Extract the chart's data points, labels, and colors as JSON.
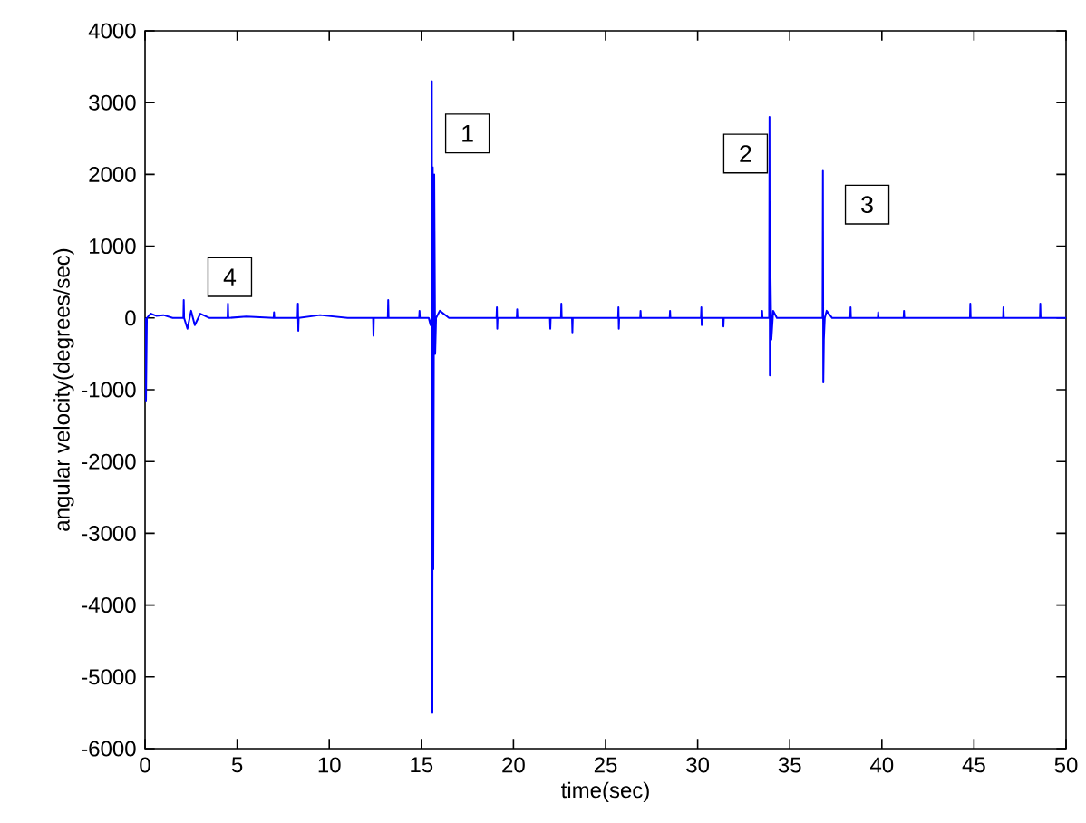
{
  "chart_data": {
    "type": "line",
    "xlabel": "time(sec)",
    "ylabel": "angular velocity(degrees/sec)",
    "xlim": [
      0,
      50
    ],
    "ylim": [
      -6000,
      4000
    ],
    "xticks": [
      0,
      5,
      10,
      15,
      20,
      25,
      30,
      35,
      40,
      45,
      50
    ],
    "yticks": [
      -6000,
      -5000,
      -4000,
      -3000,
      -2000,
      -1000,
      0,
      1000,
      2000,
      3000,
      4000
    ],
    "grid": false,
    "marker": "none",
    "line_style": "solid",
    "series": [
      {
        "color": "#0000ff",
        "x": [
          0,
          0.05,
          0.1,
          0.3,
          0.6,
          1.0,
          1.5,
          2.08,
          2.1,
          2.12,
          2.3,
          2.5,
          2.7,
          3.0,
          3.5,
          4.48,
          4.5,
          4.52,
          5.5,
          6.98,
          7.0,
          7.02,
          8.28,
          8.3,
          8.32,
          8.34,
          9.5,
          11.0,
          12.38,
          12.4,
          12.42,
          13.18,
          13.2,
          13.22,
          14.88,
          14.9,
          14.92,
          15.4,
          15.5,
          15.55,
          15.57,
          15.6,
          15.62,
          15.65,
          15.7,
          15.75,
          15.8,
          16.0,
          16.5,
          17.5,
          19.08,
          19.1,
          19.12,
          19.14,
          20.18,
          20.2,
          20.22,
          21.98,
          22.0,
          22.02,
          22.58,
          22.6,
          22.62,
          23.18,
          23.2,
          23.22,
          24.5,
          25.68,
          25.7,
          25.72,
          25.74,
          26.88,
          26.9,
          26.92,
          28.48,
          28.5,
          28.52,
          30.18,
          30.2,
          30.22,
          30.24,
          31.38,
          31.4,
          31.42,
          33.48,
          33.5,
          33.52,
          33.8,
          33.88,
          33.9,
          33.92,
          33.95,
          34.0,
          34.1,
          34.3,
          35.5,
          36.5,
          36.78,
          36.8,
          36.82,
          36.85,
          36.9,
          37.0,
          37.3,
          38.28,
          38.3,
          38.32,
          39.78,
          39.8,
          39.82,
          41.18,
          41.2,
          41.22,
          43.0,
          44.78,
          44.8,
          44.82,
          46.58,
          46.6,
          46.62,
          48.58,
          48.6,
          48.62,
          50
        ],
        "values": [
          0,
          -1150,
          0,
          60,
          30,
          40,
          0,
          0,
          250,
          0,
          -150,
          100,
          -100,
          60,
          0,
          0,
          200,
          0,
          20,
          0,
          80,
          0,
          0,
          200,
          -180,
          0,
          40,
          0,
          0,
          -250,
          0,
          0,
          250,
          0,
          0,
          100,
          0,
          0,
          -100,
          0,
          3300,
          -5500,
          2100,
          -3500,
          2000,
          -500,
          0,
          100,
          0,
          0,
          0,
          150,
          -150,
          0,
          0,
          120,
          0,
          0,
          -150,
          0,
          0,
          200,
          0,
          0,
          -200,
          0,
          0,
          0,
          150,
          -150,
          0,
          0,
          100,
          0,
          0,
          100,
          0,
          0,
          150,
          -100,
          0,
          0,
          -120,
          0,
          0,
          100,
          0,
          0,
          0,
          2800,
          -800,
          700,
          -300,
          100,
          0,
          0,
          0,
          0,
          2050,
          -900,
          -300,
          0,
          100,
          0,
          0,
          150,
          0,
          0,
          80,
          0,
          0,
          100,
          0,
          0,
          0,
          200,
          0,
          0,
          150,
          0,
          0,
          200,
          0,
          0
        ]
      }
    ],
    "annotations": [
      {
        "text": "1",
        "x": 17.5,
        "y": 2570
      },
      {
        "text": "2",
        "x": 32.6,
        "y": 2290
      },
      {
        "text": "3",
        "x": 39.2,
        "y": 1580
      },
      {
        "text": "4",
        "x": 4.6,
        "y": 570
      }
    ]
  }
}
